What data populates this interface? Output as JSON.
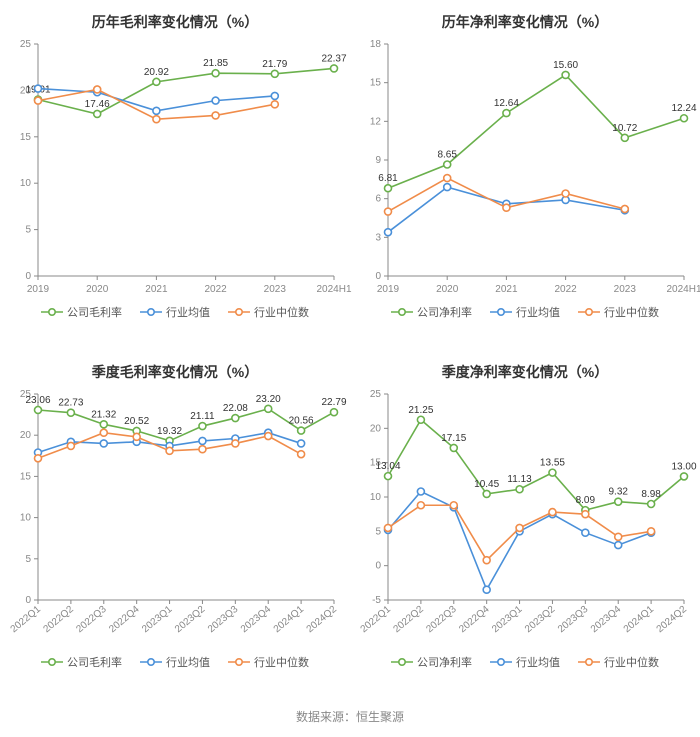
{
  "footer": "数据来源：恒生聚源",
  "colors": {
    "company": "#6ab04c",
    "industry_avg": "#4a90d9",
    "industry_median": "#f08c4a",
    "axis": "#888888",
    "text": "#333333",
    "label_text": "#888888",
    "background": "#ffffff"
  },
  "marker": {
    "radius": 3.5,
    "stroke_width": 1.6,
    "fill": "#ffffff"
  },
  "line_width": 1.6,
  "charts": [
    {
      "id": "annual-gross",
      "title": "历年毛利率变化情况（%）",
      "categories": [
        "2019",
        "2020",
        "2021",
        "2022",
        "2023",
        "2024H1"
      ],
      "y": {
        "min": 0,
        "max": 25,
        "step": 5
      },
      "x_rotate": 0,
      "series": [
        {
          "key": "company",
          "name": "公司毛利率",
          "color": "#6ab04c",
          "values": [
            19.01,
            17.46,
            20.92,
            21.85,
            21.79,
            22.37
          ],
          "labels": [
            19.01,
            17.46,
            20.92,
            21.85,
            21.79,
            22.37
          ],
          "label_all": true
        },
        {
          "key": "avg",
          "name": "行业均值",
          "color": "#4a90d9",
          "values": [
            20.2,
            19.8,
            17.8,
            18.9,
            19.4,
            null
          ]
        },
        {
          "key": "median",
          "name": "行业中位数",
          "color": "#f08c4a",
          "values": [
            18.9,
            20.1,
            16.9,
            17.3,
            18.5,
            null
          ]
        }
      ]
    },
    {
      "id": "annual-net",
      "title": "历年净利率变化情况（%）",
      "categories": [
        "2019",
        "2020",
        "2021",
        "2022",
        "2023",
        "2024H1"
      ],
      "y": {
        "min": 0,
        "max": 18,
        "step": 3
      },
      "x_rotate": 0,
      "series": [
        {
          "key": "company",
          "name": "公司净利率",
          "color": "#6ab04c",
          "values": [
            6.81,
            8.65,
            12.64,
            15.6,
            10.72,
            12.24
          ],
          "labels": [
            6.81,
            8.65,
            12.64,
            15.6,
            10.72,
            12.24
          ],
          "label_all": true
        },
        {
          "key": "avg",
          "name": "行业均值",
          "color": "#4a90d9",
          "values": [
            3.4,
            6.9,
            5.6,
            5.9,
            5.1,
            null
          ]
        },
        {
          "key": "median",
          "name": "行业中位数",
          "color": "#f08c4a",
          "values": [
            5.0,
            7.6,
            5.3,
            6.4,
            5.2,
            null
          ]
        }
      ]
    },
    {
      "id": "quarter-gross",
      "title": "季度毛利率变化情况（%）",
      "categories": [
        "2022Q1",
        "2022Q2",
        "2022Q3",
        "2022Q4",
        "2023Q1",
        "2023Q2",
        "2023Q3",
        "2023Q4",
        "2024Q1",
        "2024Q2"
      ],
      "y": {
        "min": 0,
        "max": 25,
        "step": 5
      },
      "x_rotate": -40,
      "series": [
        {
          "key": "company",
          "name": "公司毛利率",
          "color": "#6ab04c",
          "values": [
            23.06,
            22.73,
            21.32,
            20.52,
            19.32,
            21.11,
            22.08,
            23.2,
            20.56,
            22.79
          ],
          "labels": [
            23.06,
            22.73,
            21.32,
            20.52,
            19.32,
            21.11,
            22.08,
            23.2,
            20.56,
            22.79
          ],
          "label_all": true
        },
        {
          "key": "avg",
          "name": "行业均值",
          "color": "#4a90d9",
          "values": [
            17.9,
            19.2,
            19.0,
            19.2,
            18.7,
            19.3,
            19.6,
            20.3,
            19.0,
            null
          ]
        },
        {
          "key": "median",
          "name": "行业中位数",
          "color": "#f08c4a",
          "values": [
            17.2,
            18.7,
            20.3,
            19.8,
            18.1,
            18.3,
            19.0,
            19.9,
            17.7,
            null
          ]
        }
      ]
    },
    {
      "id": "quarter-net",
      "title": "季度净利率变化情况（%）",
      "categories": [
        "2022Q1",
        "2022Q2",
        "2022Q3",
        "2022Q4",
        "2023Q1",
        "2023Q2",
        "2023Q3",
        "2023Q4",
        "2024Q1",
        "2024Q2"
      ],
      "y": {
        "min": -5,
        "max": 25,
        "step": 5
      },
      "x_rotate": -40,
      "series": [
        {
          "key": "company",
          "name": "公司净利率",
          "color": "#6ab04c",
          "values": [
            13.04,
            21.25,
            17.15,
            10.45,
            11.13,
            13.55,
            8.09,
            9.32,
            8.98,
            13.0
          ],
          "labels": [
            13.04,
            21.25,
            17.15,
            10.45,
            11.13,
            13.55,
            8.09,
            9.32,
            8.98,
            13.0
          ],
          "label_all": true
        },
        {
          "key": "avg",
          "name": "行业均值",
          "color": "#4a90d9",
          "values": [
            5.2,
            10.8,
            8.5,
            -3.5,
            5.0,
            7.5,
            4.8,
            3.0,
            4.8,
            null
          ]
        },
        {
          "key": "median",
          "name": "行业中位数",
          "color": "#f08c4a",
          "values": [
            5.5,
            8.8,
            8.8,
            0.8,
            5.5,
            7.8,
            7.5,
            4.2,
            5.0,
            null
          ]
        }
      ]
    }
  ]
}
